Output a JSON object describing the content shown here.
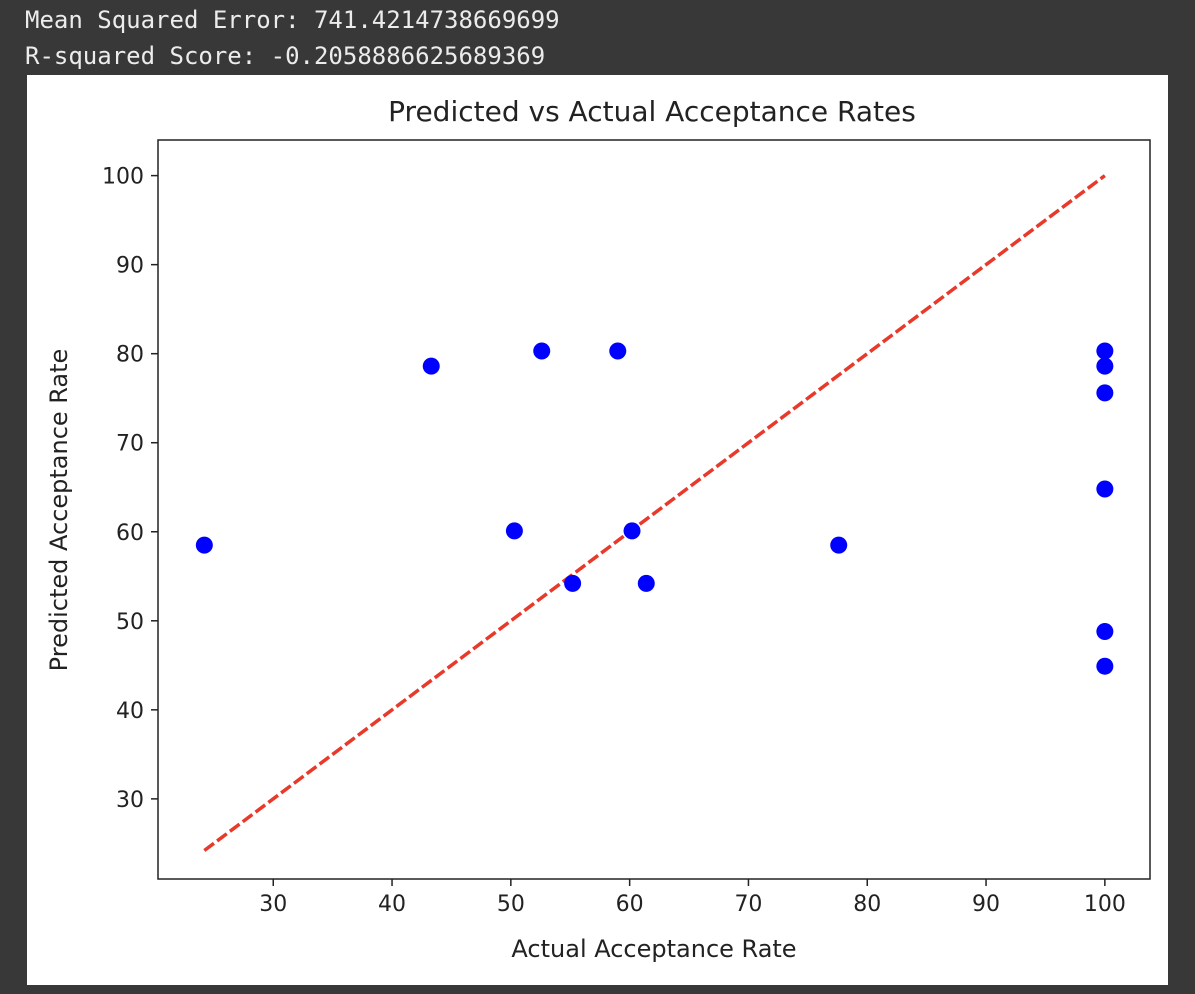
{
  "output": {
    "mse_text": "Mean Squared Error: 741.4214738669699",
    "r2_text": "R-squared Score: -0.2058886625689369"
  },
  "chart_data": {
    "type": "scatter",
    "title": "Predicted vs Actual Acceptance Rates",
    "xlabel": "Actual Acceptance Rate",
    "ylabel": "Predicted Acceptance Rate",
    "xlim": [
      20.3,
      103.8
    ],
    "ylim": [
      21,
      104
    ],
    "xticks": [
      30,
      40,
      50,
      60,
      70,
      80,
      90,
      100
    ],
    "yticks": [
      30,
      40,
      50,
      60,
      70,
      80,
      90,
      100
    ],
    "grid": false,
    "point_color": "#0000ff",
    "points": [
      {
        "x": 24.2,
        "y": 58.5
      },
      {
        "x": 43.3,
        "y": 78.6
      },
      {
        "x": 50.3,
        "y": 60.1
      },
      {
        "x": 52.6,
        "y": 80.3
      },
      {
        "x": 55.2,
        "y": 54.2
      },
      {
        "x": 59.0,
        "y": 80.3
      },
      {
        "x": 60.2,
        "y": 60.1
      },
      {
        "x": 61.4,
        "y": 54.2
      },
      {
        "x": 77.6,
        "y": 58.5
      },
      {
        "x": 100,
        "y": 80.3
      },
      {
        "x": 100,
        "y": 78.6
      },
      {
        "x": 100,
        "y": 75.6
      },
      {
        "x": 100,
        "y": 64.8
      },
      {
        "x": 100,
        "y": 48.8
      },
      {
        "x": 100,
        "y": 44.9
      }
    ],
    "reference_line": {
      "style": "dashed",
      "color": "#e8392a",
      "from": [
        24.2,
        24.2
      ],
      "to": [
        100,
        100
      ]
    }
  }
}
